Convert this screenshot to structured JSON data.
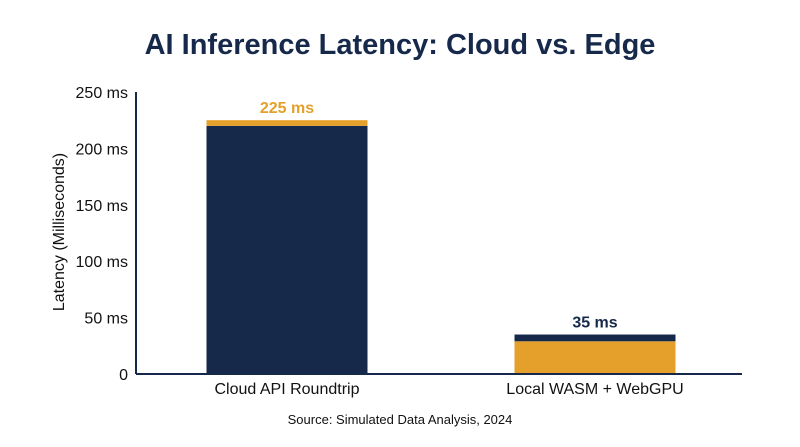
{
  "chart_data": {
    "type": "bar",
    "title": "AI Inference Latency: Cloud vs. Edge",
    "ylabel": "Latency (Milliseconds)",
    "xlabel": "",
    "source": "Source: Simulated Data Analysis, 2024",
    "categories": [
      "Cloud API Roundtrip",
      "Local WASM + WebGPU"
    ],
    "values": [
      225,
      35
    ],
    "value_labels": [
      "225 ms",
      "35 ms"
    ],
    "segments": [
      {
        "main": 220,
        "cap": 5
      },
      {
        "main": 29,
        "cap": 6
      }
    ],
    "colors": {
      "navy": "#16294B",
      "gold": "#E4A02A",
      "axis": "#16294B",
      "text": "#111111"
    },
    "ylim": [
      0,
      250
    ],
    "yticks": [
      {
        "value": 0,
        "label": "0"
      },
      {
        "value": 50,
        "label": "50 ms"
      },
      {
        "value": 100,
        "label": "100 ms"
      },
      {
        "value": 150,
        "label": "150 ms"
      },
      {
        "value": 200,
        "label": "200 ms"
      },
      {
        "value": 250,
        "label": "250 ms"
      }
    ],
    "grid": false,
    "legend": "none"
  }
}
